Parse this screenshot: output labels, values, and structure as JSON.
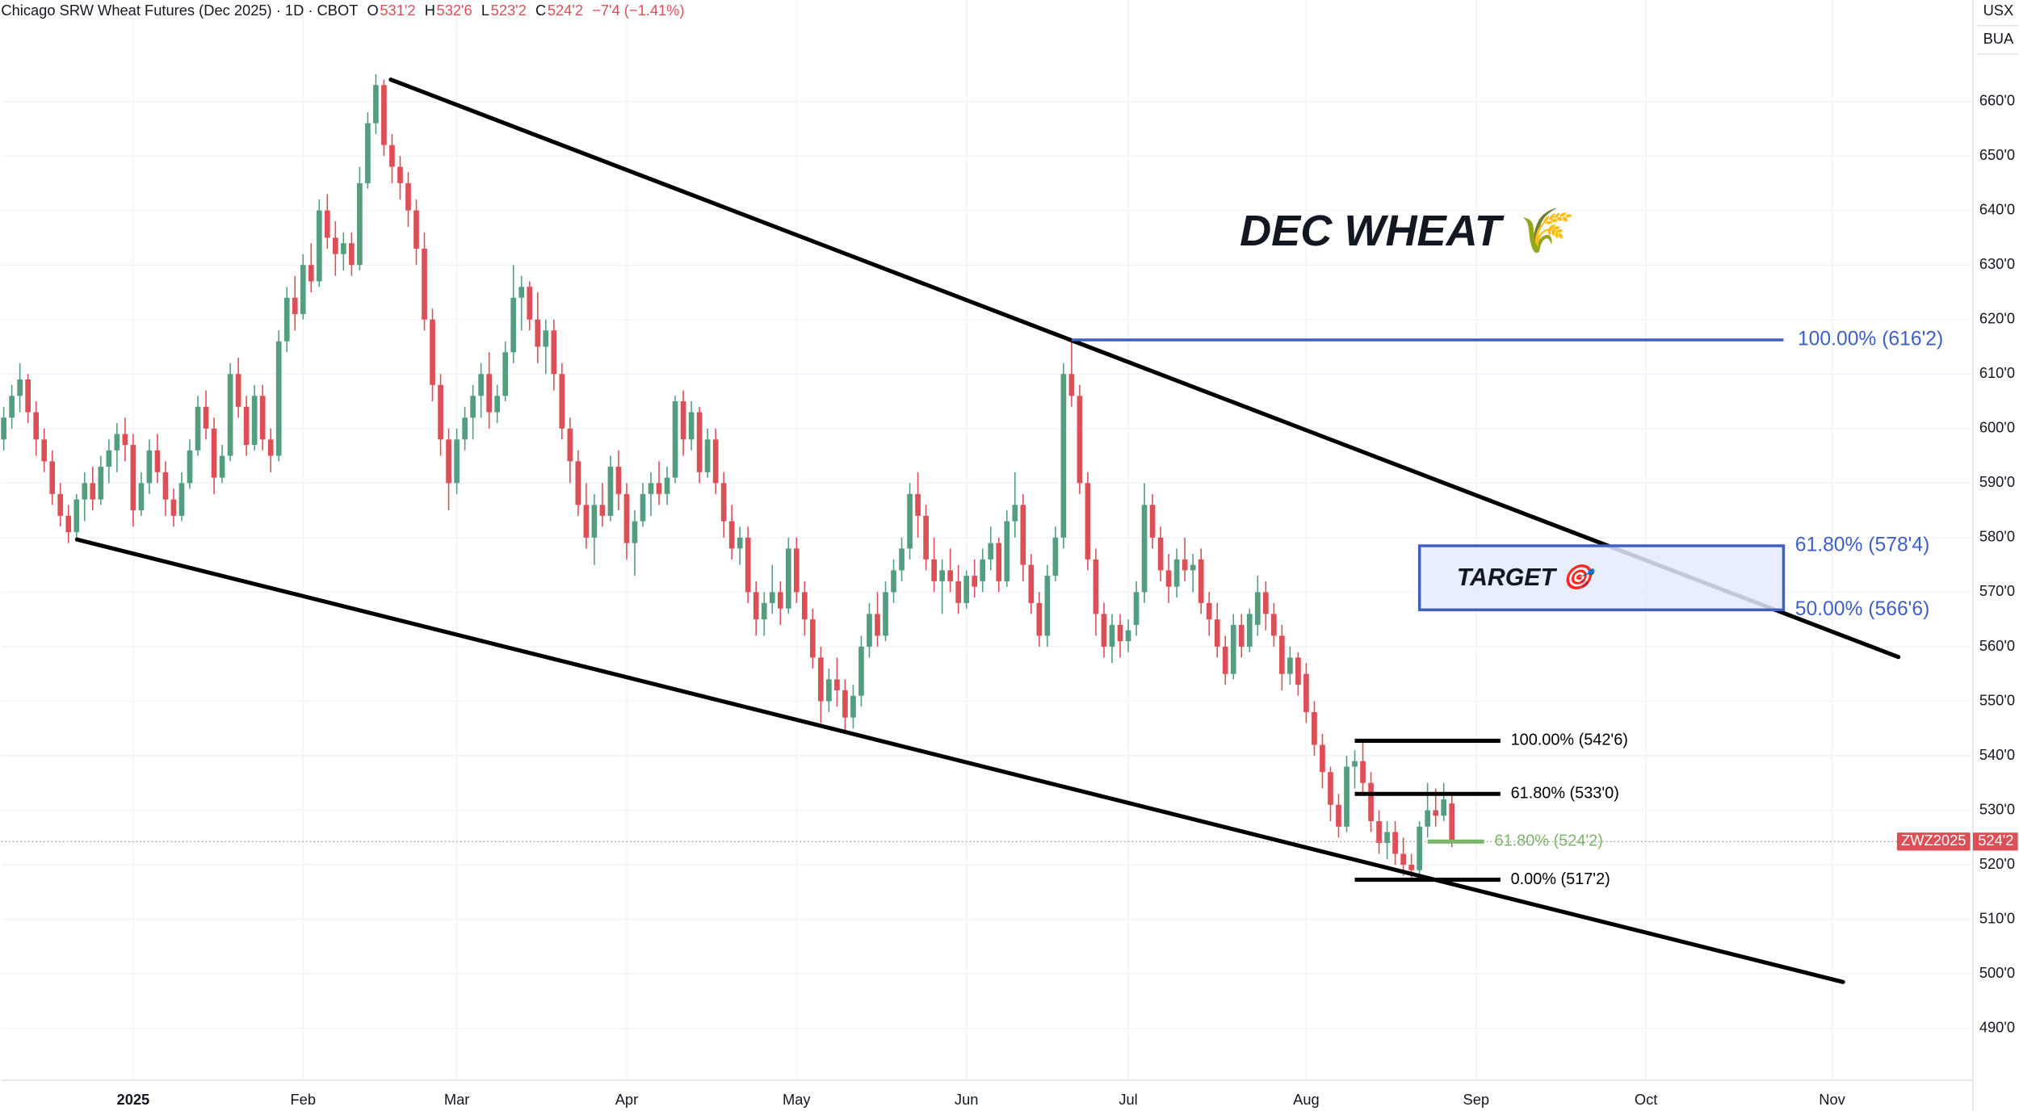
{
  "header": {
    "instrument": "Chicago SRW Wheat Futures (Dec 2025) · 1D · CBOT",
    "ohlc": [
      {
        "key": "O",
        "value": "531'2"
      },
      {
        "key": "H",
        "value": "532'6"
      },
      {
        "key": "L",
        "value": "523'2"
      },
      {
        "key": "C",
        "value": "524'2"
      }
    ],
    "change": "−7'4 (−1.41%)"
  },
  "scale_labels": [
    "USX",
    "BUA"
  ],
  "chart_data": {
    "type": "candlestick",
    "up_color": "#539e7f",
    "down_color": "#dd4f57",
    "grid": true,
    "xlim": [
      -0.32,
      243.4
    ],
    "xticks": [
      {
        "value": 16,
        "label": "2025"
      },
      {
        "value": 37,
        "label": "Feb"
      },
      {
        "value": 56,
        "label": "Mar"
      },
      {
        "value": 77,
        "label": "Apr"
      },
      {
        "value": 98,
        "label": "May"
      },
      {
        "value": 119,
        "label": "Jun"
      },
      {
        "value": 139,
        "label": "Jul"
      },
      {
        "value": 161,
        "label": "Aug"
      },
      {
        "value": 182,
        "label": "Sep"
      },
      {
        "value": 203,
        "label": "Oct"
      },
      {
        "value": 226,
        "label": "Nov"
      }
    ],
    "ylim": [
      480.5,
      678.6
    ],
    "yticks": [
      {
        "value": 490,
        "label": "490'0"
      },
      {
        "value": 500,
        "label": "500'0"
      },
      {
        "value": 510,
        "label": "510'0"
      },
      {
        "value": 520,
        "label": "520'0"
      },
      {
        "value": 530,
        "label": "530'0"
      },
      {
        "value": 540,
        "label": "540'0"
      },
      {
        "value": 550,
        "label": "550'0"
      },
      {
        "value": 560,
        "label": "560'0"
      },
      {
        "value": 570,
        "label": "570'0"
      },
      {
        "value": 580,
        "label": "580'0"
      },
      {
        "value": 590,
        "label": "590'0"
      },
      {
        "value": 600,
        "label": "600'0"
      },
      {
        "value": 610,
        "label": "610'0"
      },
      {
        "value": 620,
        "label": "620'0"
      },
      {
        "value": 630,
        "label": "630'0"
      },
      {
        "value": 640,
        "label": "640'0"
      },
      {
        "value": 650,
        "label": "650'0"
      },
      {
        "value": 660,
        "label": "660'0"
      }
    ],
    "candles": [
      [
        598,
        604,
        596,
        602
      ],
      [
        602,
        608,
        600,
        606
      ],
      [
        606,
        612,
        603,
        609
      ],
      [
        609,
        610,
        601,
        603
      ],
      [
        603,
        605,
        595,
        598
      ],
      [
        598,
        600,
        592,
        594
      ],
      [
        594,
        596,
        586,
        588
      ],
      [
        588,
        590,
        582,
        584
      ],
      [
        584,
        586,
        579,
        581
      ],
      [
        581,
        588,
        580,
        587
      ],
      [
        587,
        592,
        583,
        590
      ],
      [
        590,
        593,
        585,
        587
      ],
      [
        587,
        595,
        586,
        593
      ],
      [
        593,
        598,
        590,
        596
      ],
      [
        596,
        601,
        592,
        599
      ],
      [
        599,
        602,
        594,
        597
      ],
      [
        597,
        599,
        582,
        585
      ],
      [
        585,
        592,
        584,
        590
      ],
      [
        590,
        598,
        588,
        596
      ],
      [
        596,
        599,
        590,
        592
      ],
      [
        592,
        594,
        584,
        587
      ],
      [
        587,
        589,
        582,
        584
      ],
      [
        584,
        592,
        583,
        590
      ],
      [
        590,
        598,
        589,
        596
      ],
      [
        596,
        606,
        595,
        604
      ],
      [
        604,
        607,
        598,
        600
      ],
      [
        600,
        602,
        588,
        591
      ],
      [
        591,
        597,
        590,
        595
      ],
      [
        595,
        612,
        594,
        610
      ],
      [
        610,
        613,
        602,
        604
      ],
      [
        604,
        606,
        595,
        597
      ],
      [
        597,
        608,
        596,
        606
      ],
      [
        606,
        608,
        596,
        598
      ],
      [
        598,
        600,
        592,
        595
      ],
      [
        595,
        618,
        594,
        616
      ],
      [
        616,
        626,
        614,
        624
      ],
      [
        624,
        628,
        618,
        621
      ],
      [
        621,
        632,
        620,
        630
      ],
      [
        630,
        634,
        625,
        627
      ],
      [
        627,
        642,
        626,
        640
      ],
      [
        640,
        643,
        633,
        635
      ],
      [
        635,
        638,
        628,
        632
      ],
      [
        632,
        636,
        629,
        634
      ],
      [
        634,
        636,
        628,
        630
      ],
      [
        630,
        648,
        629,
        645
      ],
      [
        645,
        658,
        644,
        656
      ],
      [
        656,
        665,
        654,
        663
      ],
      [
        663,
        664,
        650,
        652
      ],
      [
        652,
        654,
        645,
        648
      ],
      [
        648,
        650,
        642,
        645
      ],
      [
        645,
        647,
        637,
        640
      ],
      [
        640,
        642,
        630,
        633
      ],
      [
        633,
        636,
        618,
        620
      ],
      [
        620,
        622,
        605,
        608
      ],
      [
        608,
        610,
        595,
        598
      ],
      [
        598,
        600,
        585,
        590
      ],
      [
        590,
        600,
        588,
        598
      ],
      [
        598,
        604,
        596,
        602
      ],
      [
        602,
        608,
        598,
        606
      ],
      [
        606,
        612,
        602,
        610
      ],
      [
        610,
        614,
        600,
        603
      ],
      [
        603,
        608,
        601,
        606
      ],
      [
        606,
        616,
        605,
        614
      ],
      [
        614,
        630,
        612,
        624
      ],
      [
        624,
        628,
        618,
        626
      ],
      [
        626,
        627,
        618,
        620
      ],
      [
        620,
        625,
        612,
        615
      ],
      [
        615,
        620,
        610,
        618
      ],
      [
        618,
        620,
        607,
        610
      ],
      [
        610,
        612,
        598,
        600
      ],
      [
        600,
        602,
        590,
        594
      ],
      [
        594,
        596,
        584,
        586
      ],
      [
        586,
        590,
        578,
        580
      ],
      [
        580,
        588,
        575,
        586
      ],
      [
        586,
        590,
        582,
        584
      ],
      [
        584,
        595,
        583,
        593
      ],
      [
        593,
        596,
        585,
        588
      ],
      [
        588,
        590,
        576,
        579
      ],
      [
        579,
        585,
        573,
        583
      ],
      [
        583,
        590,
        582,
        588
      ],
      [
        588,
        592,
        584,
        590
      ],
      [
        590,
        594,
        586,
        588
      ],
      [
        588,
        593,
        586,
        591
      ],
      [
        591,
        606,
        590,
        605
      ],
      [
        605,
        607,
        595,
        598
      ],
      [
        598,
        605,
        596,
        603
      ],
      [
        603,
        604,
        590,
        592
      ],
      [
        592,
        600,
        591,
        598
      ],
      [
        598,
        600,
        588,
        590
      ],
      [
        590,
        592,
        580,
        583
      ],
      [
        583,
        586,
        576,
        578
      ],
      [
        578,
        582,
        575,
        580
      ],
      [
        580,
        582,
        568,
        570
      ],
      [
        570,
        572,
        562,
        565
      ],
      [
        565,
        570,
        562,
        568
      ],
      [
        568,
        575,
        566,
        570
      ],
      [
        570,
        572,
        564,
        567
      ],
      [
        567,
        580,
        566,
        578
      ],
      [
        578,
        580,
        568,
        570
      ],
      [
        570,
        572,
        562,
        565
      ],
      [
        565,
        567,
        556,
        558
      ],
      [
        558,
        560,
        546,
        550
      ],
      [
        550,
        556,
        548,
        554
      ],
      [
        554,
        558,
        549,
        552
      ],
      [
        552,
        554,
        544,
        547
      ],
      [
        547,
        553,
        545,
        551
      ],
      [
        551,
        562,
        549,
        560
      ],
      [
        560,
        568,
        558,
        566
      ],
      [
        566,
        570,
        560,
        562
      ],
      [
        562,
        572,
        561,
        570
      ],
      [
        570,
        576,
        568,
        574
      ],
      [
        574,
        580,
        572,
        578
      ],
      [
        578,
        590,
        576,
        588
      ],
      [
        588,
        592,
        580,
        584
      ],
      [
        584,
        586,
        574,
        576
      ],
      [
        576,
        580,
        570,
        572
      ],
      [
        572,
        576,
        566,
        574
      ],
      [
        574,
        578,
        570,
        572
      ],
      [
        572,
        575,
        566,
        568
      ],
      [
        568,
        574,
        567,
        573
      ],
      [
        573,
        576,
        569,
        571
      ],
      [
        572,
        578,
        570,
        576
      ],
      [
        576,
        582,
        574,
        579
      ],
      [
        579,
        580,
        570,
        572
      ],
      [
        572,
        585,
        571,
        583
      ],
      [
        583,
        592,
        580,
        586
      ],
      [
        586,
        588,
        572,
        575
      ],
      [
        575,
        577,
        566,
        568
      ],
      [
        568,
        570,
        560,
        562
      ],
      [
        562,
        575,
        560,
        573
      ],
      [
        573,
        582,
        572,
        580
      ],
      [
        580,
        612,
        578,
        610
      ],
      [
        610,
        616.25,
        604,
        606
      ],
      [
        606,
        608,
        588,
        590
      ],
      [
        590,
        592,
        574,
        576
      ],
      [
        576,
        578,
        562,
        566
      ],
      [
        566,
        568,
        558,
        560
      ],
      [
        560,
        566,
        557,
        564
      ],
      [
        564,
        566,
        558,
        561
      ],
      [
        561,
        565,
        559,
        563
      ],
      [
        564,
        572,
        562,
        570
      ],
      [
        570,
        590,
        568,
        586
      ],
      [
        586,
        588,
        578,
        580
      ],
      [
        580,
        582,
        572,
        574
      ],
      [
        574,
        577,
        568,
        571
      ],
      [
        571,
        578,
        569,
        576
      ],
      [
        576,
        580,
        572,
        574
      ],
      [
        574,
        577,
        570,
        575
      ],
      [
        576,
        578,
        566,
        568
      ],
      [
        568,
        570,
        562,
        565
      ],
      [
        565,
        568,
        558,
        560
      ],
      [
        560,
        562,
        553,
        555
      ],
      [
        555,
        566,
        554,
        564
      ],
      [
        564,
        566,
        558,
        560
      ],
      [
        560,
        567,
        559,
        566
      ],
      [
        564,
        573,
        562,
        570
      ],
      [
        570,
        572,
        563,
        566
      ],
      [
        566,
        568,
        560,
        562
      ],
      [
        562,
        564,
        552,
        555
      ],
      [
        555,
        560,
        553,
        558
      ],
      [
        558,
        559,
        551,
        553
      ],
      [
        555,
        557,
        546,
        548
      ],
      [
        548,
        550,
        540,
        542
      ],
      [
        542,
        544,
        534,
        537
      ],
      [
        537,
        538,
        528,
        531
      ],
      [
        531,
        533,
        525,
        527
      ],
      [
        527,
        540,
        526,
        538
      ],
      [
        538,
        541,
        534,
        539
      ],
      [
        539,
        542.75,
        533,
        535
      ],
      [
        535,
        537,
        526,
        528
      ],
      [
        528,
        530,
        522,
        524
      ],
      [
        524,
        528,
        521,
        526
      ],
      [
        526,
        528,
        520,
        522
      ],
      [
        522,
        525,
        518,
        520
      ],
      [
        520,
        522,
        517.25,
        519
      ],
      [
        519,
        528,
        518,
        527
      ],
      [
        527,
        535,
        525,
        530
      ],
      [
        530,
        534,
        527,
        529
      ],
      [
        529,
        535,
        528,
        532
      ],
      [
        531.25,
        532.75,
        523.25,
        524.25
      ]
    ],
    "last_price": {
      "value": 524.25,
      "label": "524'2",
      "symbol": "ZWZ2025",
      "color": "#dd4f57"
    },
    "annotations": {
      "title": "DEC WHEAT 🌾",
      "trendlines": [
        {
          "x": [
            47.85,
            234.2
          ],
          "y": [
            664,
            558.1
          ],
          "color": "#000000"
        },
        {
          "x": [
            9.06,
            227.35
          ],
          "y": [
            579.65,
            498.5
          ],
          "color": "#000000"
        }
      ],
      "fib_levels": [
        {
          "value": 616.25,
          "label": "100.00% (616'2)",
          "x": [
            132,
            220
          ],
          "color": "#3f5fc4"
        },
        {
          "value": 542.75,
          "label": "100.00% (542'6)",
          "x": [
            167,
            185
          ],
          "color": "#000000"
        },
        {
          "value": 533,
          "label": "61.80% (533'0)",
          "x": [
            167,
            185
          ],
          "color": "#000000"
        },
        {
          "value": 517.25,
          "label": "0.00% (517'2)",
          "x": [
            167,
            185
          ],
          "color": "#000000"
        },
        {
          "value": 524.25,
          "label": "61.80% (524'2)",
          "x": [
            176,
            183
          ],
          "color": "#7bb56a"
        }
      ],
      "target_box": {
        "label": "TARGET 🎯",
        "top": 578.5,
        "bottom": 566.75,
        "x": [
          175,
          220
        ],
        "top_label": "61.80% (578'4)",
        "bottom_label": "50.00% (566'6)",
        "color": "#3f5fc4",
        "fill": "#e3ebfb"
      }
    }
  }
}
